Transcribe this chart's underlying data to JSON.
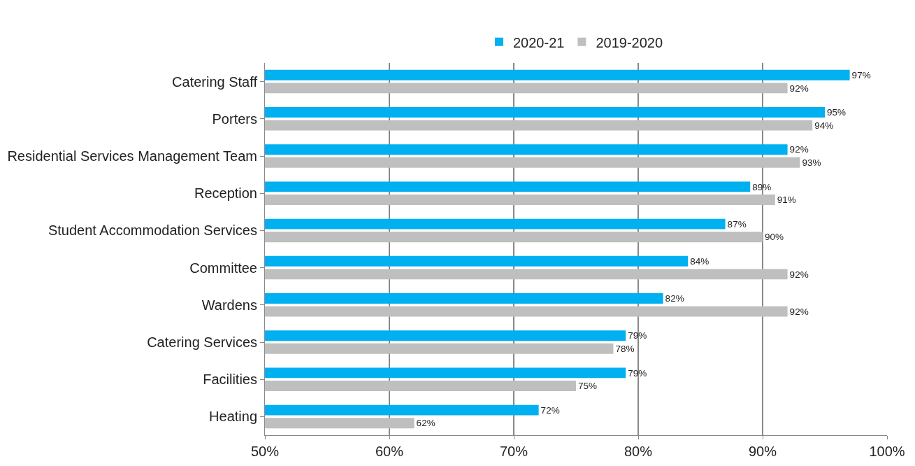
{
  "chart_data": {
    "type": "bar",
    "orientation": "horizontal",
    "categories": [
      "Catering Staff",
      "Porters",
      "Residential Services Management Team",
      "Reception",
      "Student Accommodation Services",
      "Committee",
      "Wardens",
      "Catering Services",
      "Facilities",
      "Heating"
    ],
    "series": [
      {
        "name": "2020-21",
        "color": "#00b0f0",
        "values": [
          97,
          95,
          92,
          89,
          87,
          84,
          82,
          79,
          79,
          72
        ],
        "value_labels": [
          "97%",
          "95%",
          "92%",
          "89%",
          "87%",
          "84%",
          "82%",
          "79%",
          "79%",
          "72%"
        ]
      },
      {
        "name": "2019-2020",
        "color": "#bfbfbf",
        "values": [
          92,
          94,
          93,
          91,
          90,
          92,
          92,
          78,
          75,
          62
        ],
        "value_labels": [
          "92%",
          "94%",
          "93%",
          "91%",
          "90%",
          "92%",
          "92%",
          "78%",
          "75%",
          "62%"
        ]
      }
    ],
    "xlim": [
      50,
      100
    ],
    "xticks": [
      {
        "value": 50,
        "label": "50%"
      },
      {
        "value": 60,
        "label": "60%"
      },
      {
        "value": 70,
        "label": "70%"
      },
      {
        "value": 80,
        "label": "80%"
      },
      {
        "value": 90,
        "label": "90%"
      },
      {
        "value": 100,
        "label": "100%"
      }
    ],
    "grid": "x",
    "legend": "top"
  }
}
